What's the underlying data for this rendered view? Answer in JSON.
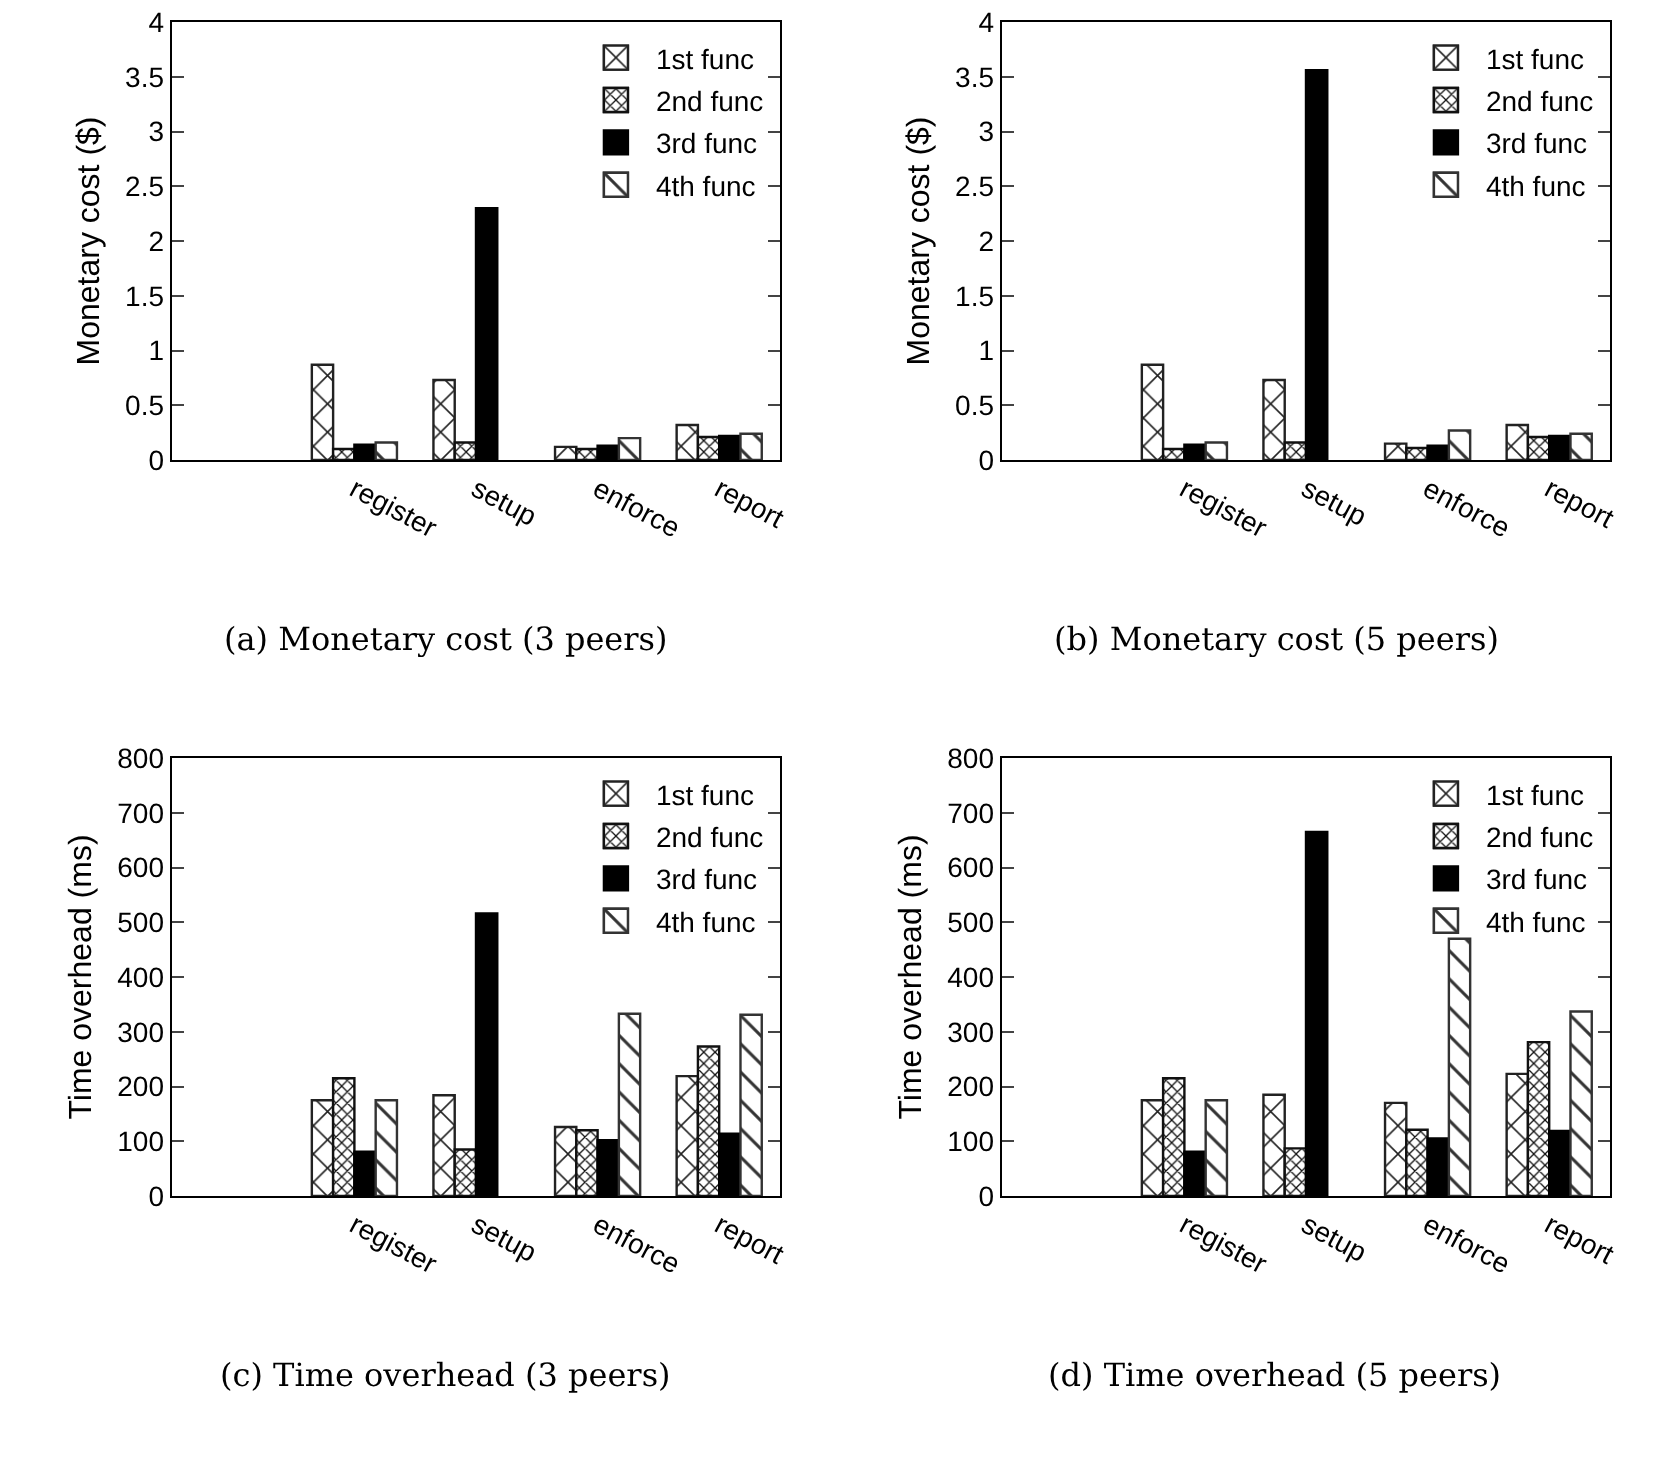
{
  "chart_data": [
    {
      "type": "bar",
      "title": "(a) Monetary cost (3 peers)",
      "ylabel": "Monetary cost ($)",
      "categories": [
        null,
        "register",
        "setup",
        "enforce",
        "report"
      ],
      "ylim": [
        0,
        4
      ],
      "yticks": [
        0,
        0.5,
        1,
        1.5,
        2,
        2.5,
        3,
        3.5,
        4
      ],
      "grid": false,
      "legend": "top right",
      "series": [
        {
          "name": "1st func",
          "color": "#222222",
          "values": [
            null,
            0.87,
            0.73,
            0.12,
            0.32
          ]
        },
        {
          "name": "2nd func",
          "color": "#111111",
          "values": [
            null,
            0.1,
            0.16,
            0.1,
            0.21
          ]
        },
        {
          "name": "3rd func",
          "color": "#000000",
          "values": [
            null,
            0.14,
            2.3,
            0.13,
            0.22
          ]
        },
        {
          "name": "4th func",
          "color": "#333333",
          "values": [
            null,
            0.16,
            null,
            0.2,
            0.24
          ]
        }
      ]
    },
    {
      "type": "bar",
      "title": "(b) Monetary cost (5 peers)",
      "ylabel": "Monetary cost ($)",
      "categories": [
        null,
        "register",
        "setup",
        "enforce",
        "report"
      ],
      "ylim": [
        0,
        4
      ],
      "yticks": [
        0,
        0.5,
        1,
        1.5,
        2,
        2.5,
        3,
        3.5,
        4
      ],
      "grid": false,
      "legend": "top right",
      "series": [
        {
          "name": "1st func",
          "color": "#222222",
          "values": [
            null,
            0.87,
            0.73,
            0.15,
            0.32
          ]
        },
        {
          "name": "2nd func",
          "color": "#111111",
          "values": [
            null,
            0.1,
            0.16,
            0.11,
            0.21
          ]
        },
        {
          "name": "3rd func",
          "color": "#000000",
          "values": [
            null,
            0.14,
            3.56,
            0.13,
            0.22
          ]
        },
        {
          "name": "4th func",
          "color": "#333333",
          "values": [
            null,
            0.16,
            null,
            0.27,
            0.24
          ]
        }
      ]
    },
    {
      "type": "bar",
      "title": "(c) Time overhead (3 peers)",
      "ylabel": "Time overhead (ms)",
      "categories": [
        null,
        "register",
        "setup",
        "enforce",
        "report"
      ],
      "ylim": [
        0,
        800
      ],
      "yticks": [
        0,
        100,
        200,
        300,
        400,
        500,
        600,
        700,
        800
      ],
      "grid": false,
      "legend": "top right",
      "series": [
        {
          "name": "1st func",
          "color": "#222222",
          "values": [
            null,
            175,
            184,
            126,
            219
          ]
        },
        {
          "name": "2nd func",
          "color": "#111111",
          "values": [
            null,
            215,
            85,
            120,
            273
          ]
        },
        {
          "name": "3rd func",
          "color": "#000000",
          "values": [
            null,
            81,
            516,
            102,
            114
          ]
        },
        {
          "name": "4th func",
          "color": "#333333",
          "values": [
            null,
            175,
            null,
            333,
            331
          ]
        }
      ]
    },
    {
      "type": "bar",
      "title": "(d) Time overhead (5 peers)",
      "ylabel": "Time overhead (ms)",
      "categories": [
        null,
        "register",
        "setup",
        "enforce",
        "report"
      ],
      "ylim": [
        0,
        800
      ],
      "yticks": [
        0,
        100,
        200,
        300,
        400,
        500,
        600,
        700,
        800
      ],
      "grid": false,
      "legend": "top right",
      "series": [
        {
          "name": "1st func",
          "color": "#222222",
          "values": [
            null,
            175,
            185,
            170,
            223
          ]
        },
        {
          "name": "2nd func",
          "color": "#111111",
          "values": [
            null,
            215,
            87,
            121,
            281
          ]
        },
        {
          "name": "3rd func",
          "color": "#000000",
          "values": [
            null,
            81,
            665,
            105,
            119
          ]
        },
        {
          "name": "4th func",
          "color": "#333333",
          "values": [
            null,
            175,
            null,
            470,
            337
          ]
        }
      ]
    }
  ]
}
